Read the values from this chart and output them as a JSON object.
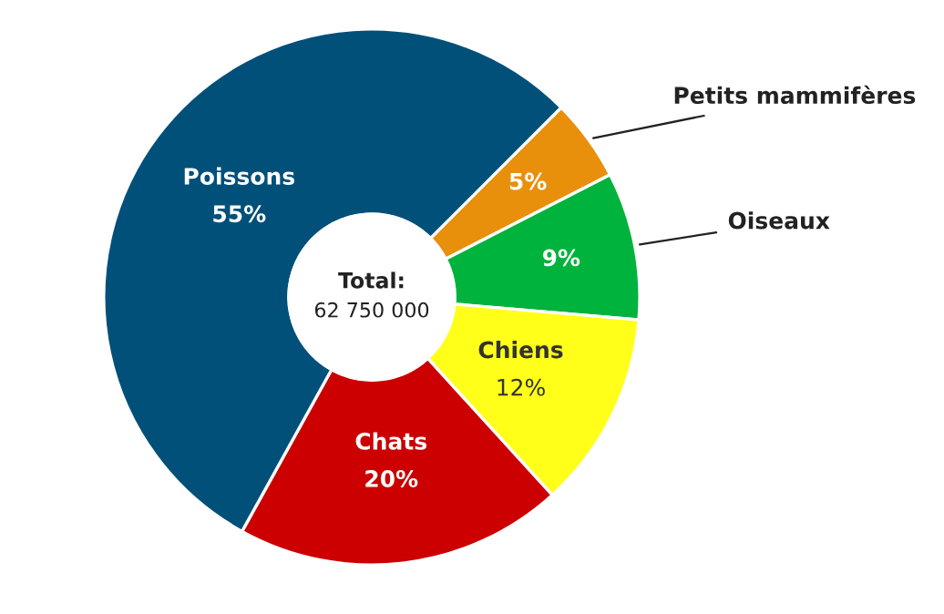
{
  "chart_data": {
    "type": "donut",
    "categories": [
      "Petits mammifères",
      "Oiseaux",
      "Chiens",
      "Chats",
      "Poissons"
    ],
    "values": [
      5,
      9,
      12,
      20,
      55
    ],
    "colors": [
      "#e8900c",
      "#00b33c",
      "#ffff1a",
      "#cc0000",
      "#00507a"
    ],
    "value_labels": [
      "5%",
      "9%",
      "12%",
      "20%",
      "55%"
    ],
    "annotations": [
      "Total:",
      "62 750 000"
    ],
    "legend": false
  }
}
